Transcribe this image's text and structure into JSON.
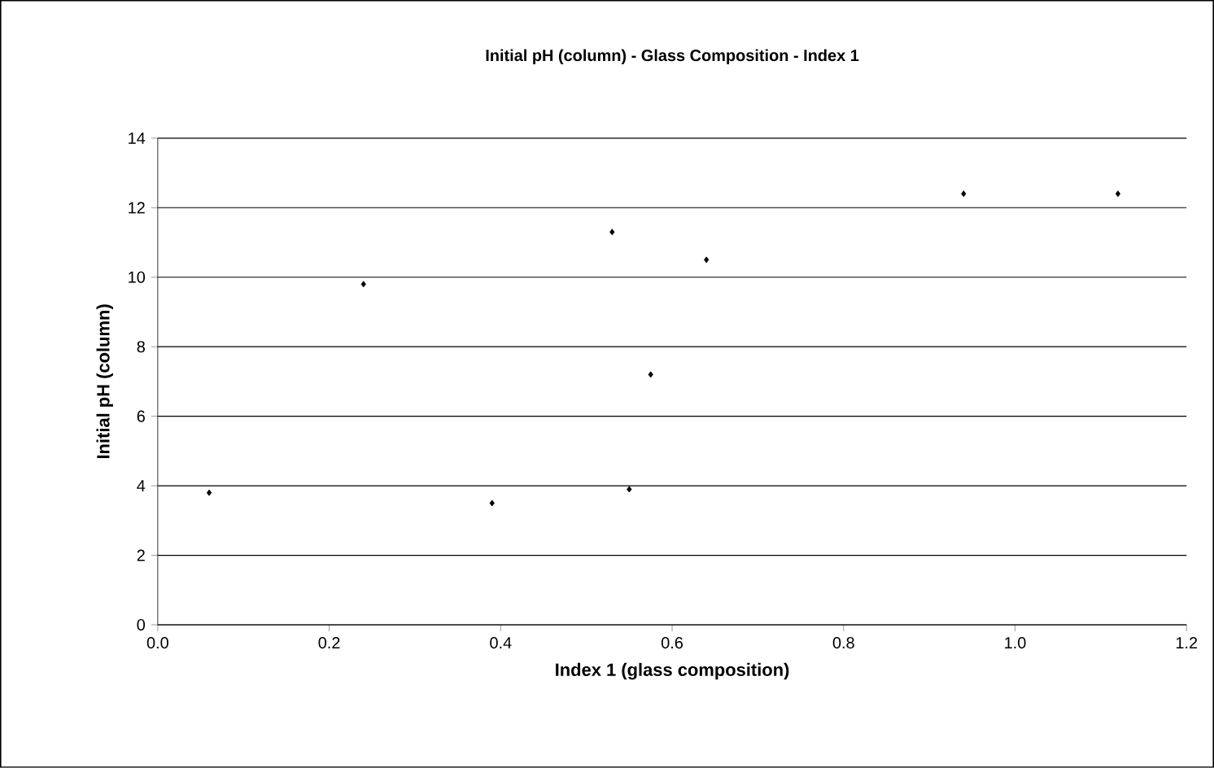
{
  "chart_data": {
    "type": "scatter",
    "title": "Initial pH (column) - Glass Composition - Index 1",
    "xlabel": "Index 1 (glass composition)",
    "ylabel": "Initial pH (column)",
    "x": [
      0.06,
      0.24,
      0.39,
      0.53,
      0.55,
      0.575,
      0.64,
      0.94,
      1.12
    ],
    "values": [
      3.8,
      9.8,
      3.5,
      11.3,
      3.9,
      7.2,
      10.5,
      12.4,
      12.4
    ],
    "color": "#000000",
    "marker": "diamond",
    "grid": "y",
    "xlim": [
      0,
      1.2
    ],
    "xticks": [
      {
        "value": 0,
        "label": "0.0"
      },
      {
        "value": 0.2,
        "label": "0.2"
      },
      {
        "value": 0.4,
        "label": "0.4"
      },
      {
        "value": 0.6,
        "label": "0.6"
      },
      {
        "value": 0.8,
        "label": "0.8"
      },
      {
        "value": 1.0,
        "label": "1.0"
      },
      {
        "value": 1.2,
        "label": "1.2"
      }
    ],
    "ylim": [
      0,
      14
    ],
    "yticks": [
      0,
      2,
      4,
      6,
      8,
      10,
      12,
      14
    ]
  }
}
